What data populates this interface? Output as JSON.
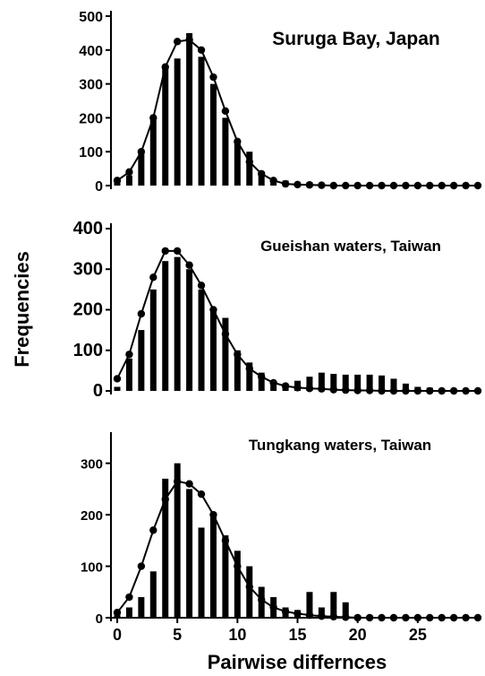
{
  "figure": {
    "ylabel": "Frequencies",
    "xlabel": "Pairwise differnces"
  },
  "chart_data": [
    {
      "type": "bar",
      "title": "Suruga Bay, Japan",
      "ylim": [
        0,
        500
      ],
      "yticks": [
        "0",
        "100",
        "200",
        "300",
        "400",
        "500"
      ],
      "x": [
        0,
        1,
        2,
        3,
        4,
        5,
        6,
        7,
        8,
        9,
        10,
        11,
        12,
        13,
        14,
        15,
        16,
        17,
        18,
        19,
        20,
        21,
        22,
        23,
        24,
        25,
        26,
        27,
        28,
        29,
        30
      ],
      "observed": [
        15,
        30,
        100,
        200,
        350,
        375,
        450,
        380,
        300,
        200,
        130,
        100,
        30,
        20,
        15,
        10,
        10,
        5,
        5,
        5,
        3,
        3,
        2,
        2,
        2,
        2,
        2,
        2,
        2,
        2,
        2
      ],
      "expected": [
        15,
        40,
        100,
        200,
        350,
        425,
        430,
        400,
        320,
        220,
        130,
        70,
        35,
        15,
        5,
        3,
        2,
        1,
        0,
        0,
        0,
        0,
        0,
        0,
        0,
        0,
        0,
        0,
        0,
        0,
        0
      ]
    },
    {
      "type": "bar",
      "title": "Gueishan waters, Taiwan",
      "ylim": [
        0,
        400
      ],
      "yticks": [
        "0",
        "100",
        "200",
        "300",
        "400"
      ],
      "x": [
        0,
        1,
        2,
        3,
        4,
        5,
        6,
        7,
        8,
        9,
        10,
        11,
        12,
        13,
        14,
        15,
        16,
        17,
        18,
        19,
        20,
        21,
        22,
        23,
        24,
        25,
        26,
        27,
        28,
        29,
        30
      ],
      "observed": [
        10,
        80,
        150,
        250,
        320,
        330,
        300,
        250,
        200,
        180,
        100,
        70,
        45,
        20,
        18,
        25,
        35,
        45,
        42,
        40,
        40,
        40,
        38,
        30,
        18,
        10,
        8,
        5,
        5,
        5,
        5
      ],
      "expected": [
        30,
        90,
        190,
        280,
        345,
        345,
        310,
        260,
        200,
        140,
        90,
        55,
        35,
        20,
        12,
        8,
        6,
        5,
        3,
        2,
        1,
        1,
        0,
        0,
        0,
        0,
        0,
        0,
        0,
        0,
        0
      ]
    },
    {
      "type": "bar",
      "title": "Tungkang waters, Taiwan",
      "ylim": [
        0,
        350
      ],
      "yticks": [
        "0",
        "100",
        "200",
        "300"
      ],
      "xticks": [
        "0",
        "5",
        "10",
        "15",
        "20",
        "25"
      ],
      "x": [
        0,
        1,
        2,
        3,
        4,
        5,
        6,
        7,
        8,
        9,
        10,
        11,
        12,
        13,
        14,
        15,
        16,
        17,
        18,
        19,
        20,
        21,
        22,
        23,
        24,
        25,
        26,
        27,
        28,
        29,
        30
      ],
      "observed": [
        5,
        20,
        40,
        90,
        270,
        300,
        250,
        175,
        200,
        160,
        130,
        100,
        60,
        40,
        20,
        15,
        50,
        20,
        50,
        30,
        5,
        5,
        2,
        2,
        2,
        2,
        2,
        2,
        2,
        2,
        2
      ],
      "expected": [
        10,
        40,
        100,
        170,
        230,
        265,
        260,
        240,
        200,
        150,
        100,
        60,
        35,
        20,
        12,
        8,
        5,
        3,
        2,
        1,
        0,
        0,
        0,
        0,
        0,
        0,
        0,
        0,
        0,
        0,
        0
      ]
    }
  ]
}
